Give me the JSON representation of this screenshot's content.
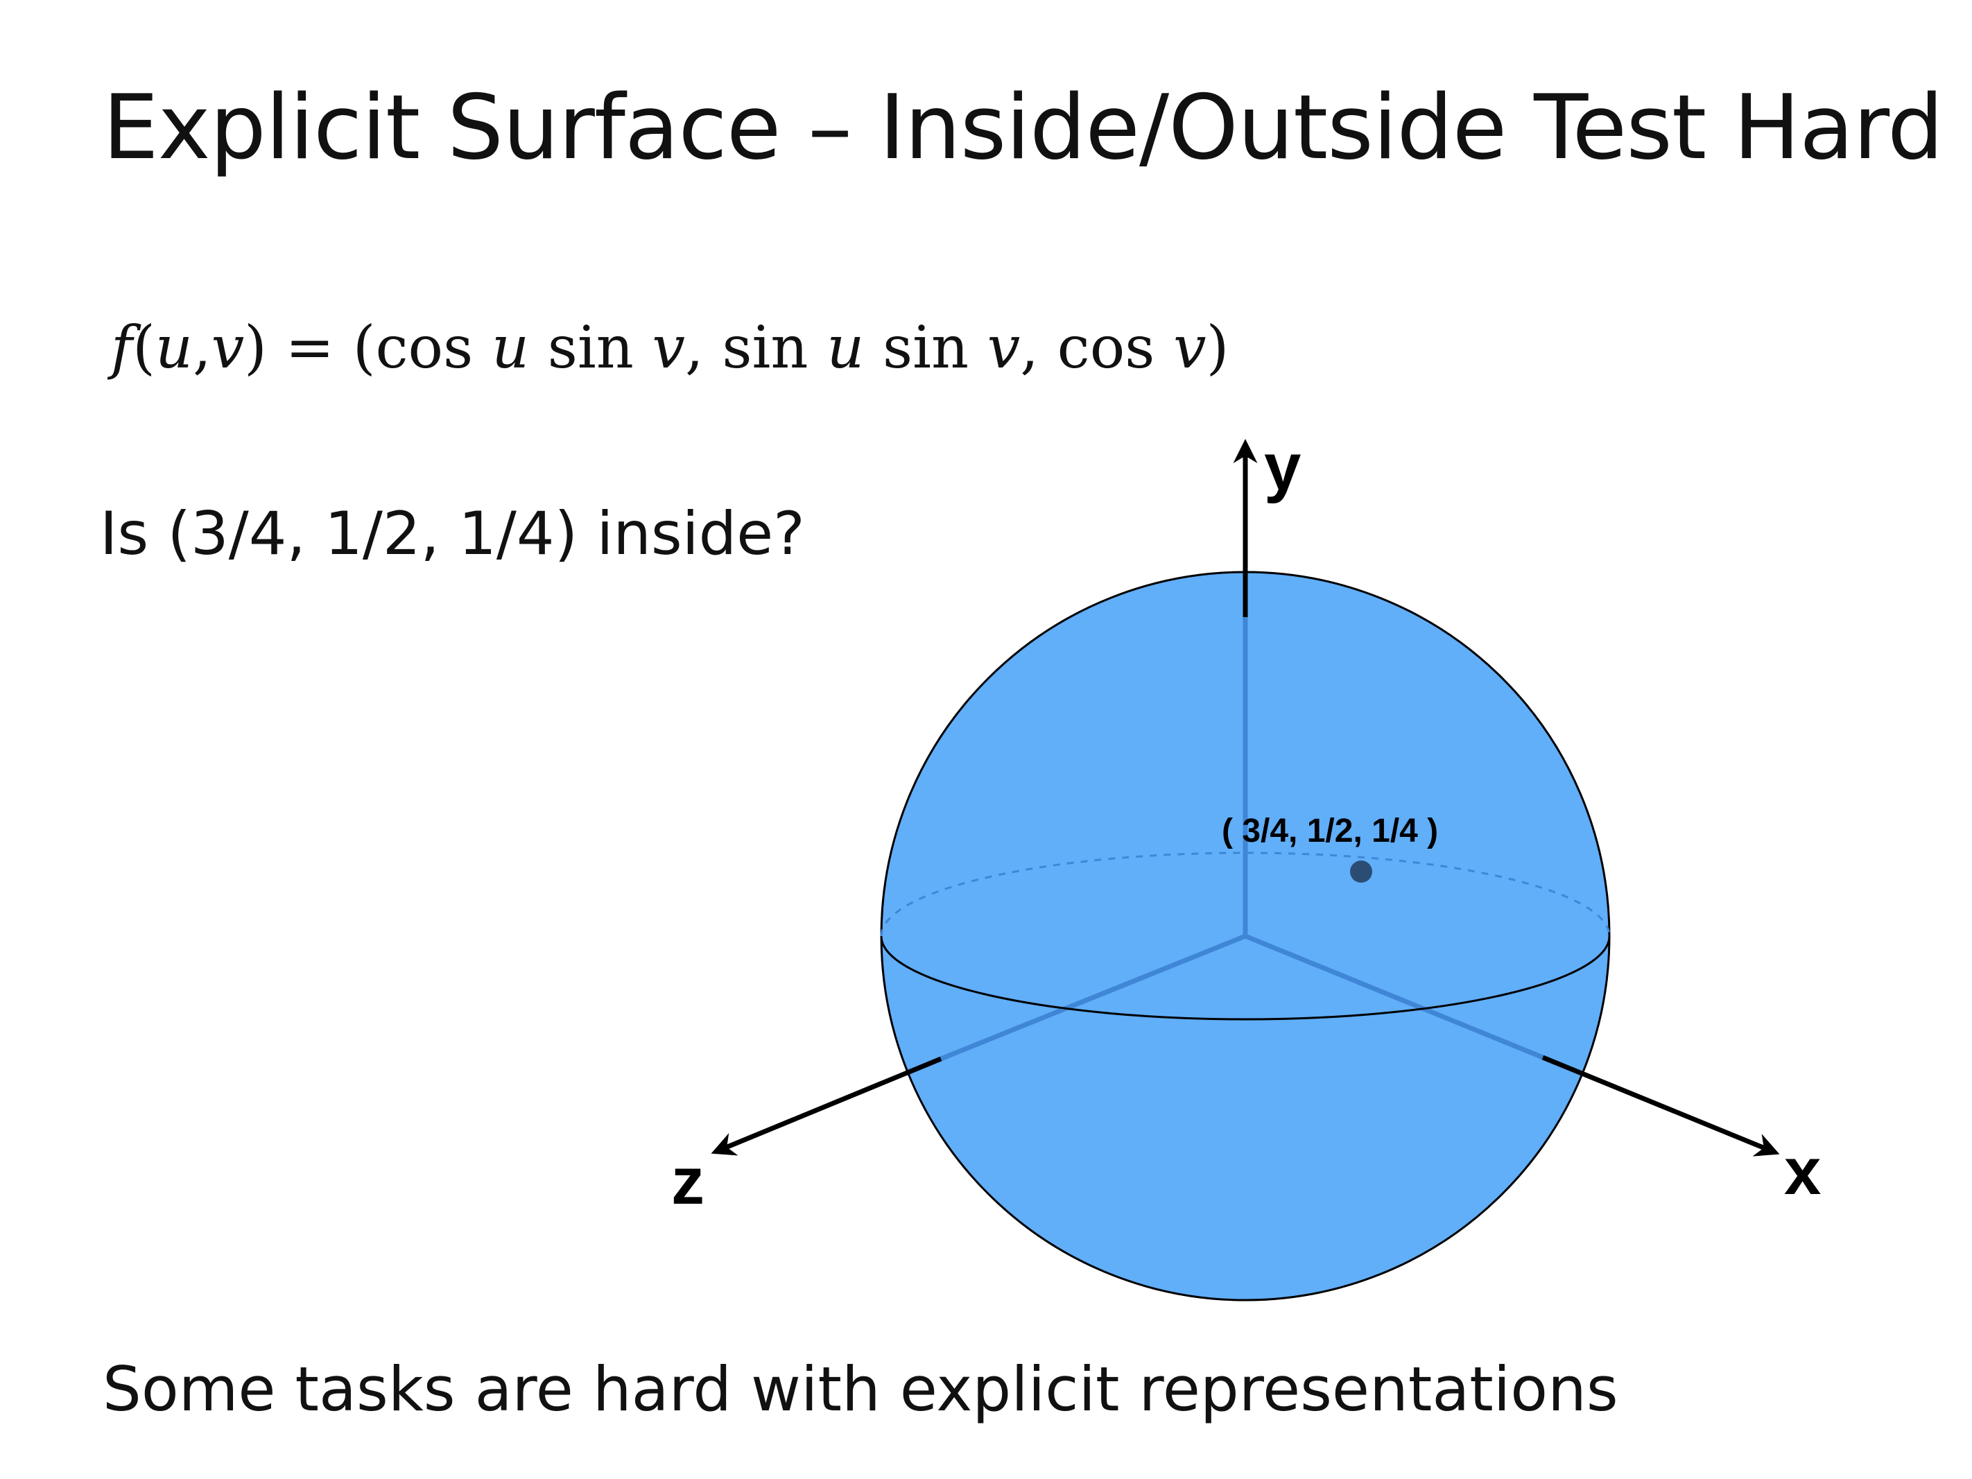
{
  "title": "Explicit Surface – Inside/Outside Test Hard",
  "formula": {
    "lhs_f": "f",
    "lhs_open": "(",
    "lhs_u": "u",
    "lhs_comma": ",",
    "lhs_v": "v",
    "lhs_close": ")",
    "equals": " = (",
    "cos1": "cos",
    "u1": "u",
    "sin1": "sin",
    "v1": "v",
    "sep1": ", ",
    "sin2": "sin",
    "u2": "u",
    "sin3": "sin",
    "v2": "v",
    "sep2": ", ",
    "cos2": "cos",
    "v3": "v",
    "close": ")"
  },
  "question": "Is (3/4, 1/2, 1/4) inside?",
  "diagram": {
    "axis_labels": {
      "x": "x",
      "y": "y",
      "z": "z"
    },
    "point_label": "( 3/4, 1/2, 1/4 )",
    "colors": {
      "sphere_fill": "#61aef9",
      "sphere_stroke": "#000000",
      "inner_axis": "#3f87d6",
      "axis": "#000000",
      "point": "#2c4d73",
      "equator_back": "#3f87d6"
    }
  },
  "footer": "Some tasks are hard with explicit representations"
}
